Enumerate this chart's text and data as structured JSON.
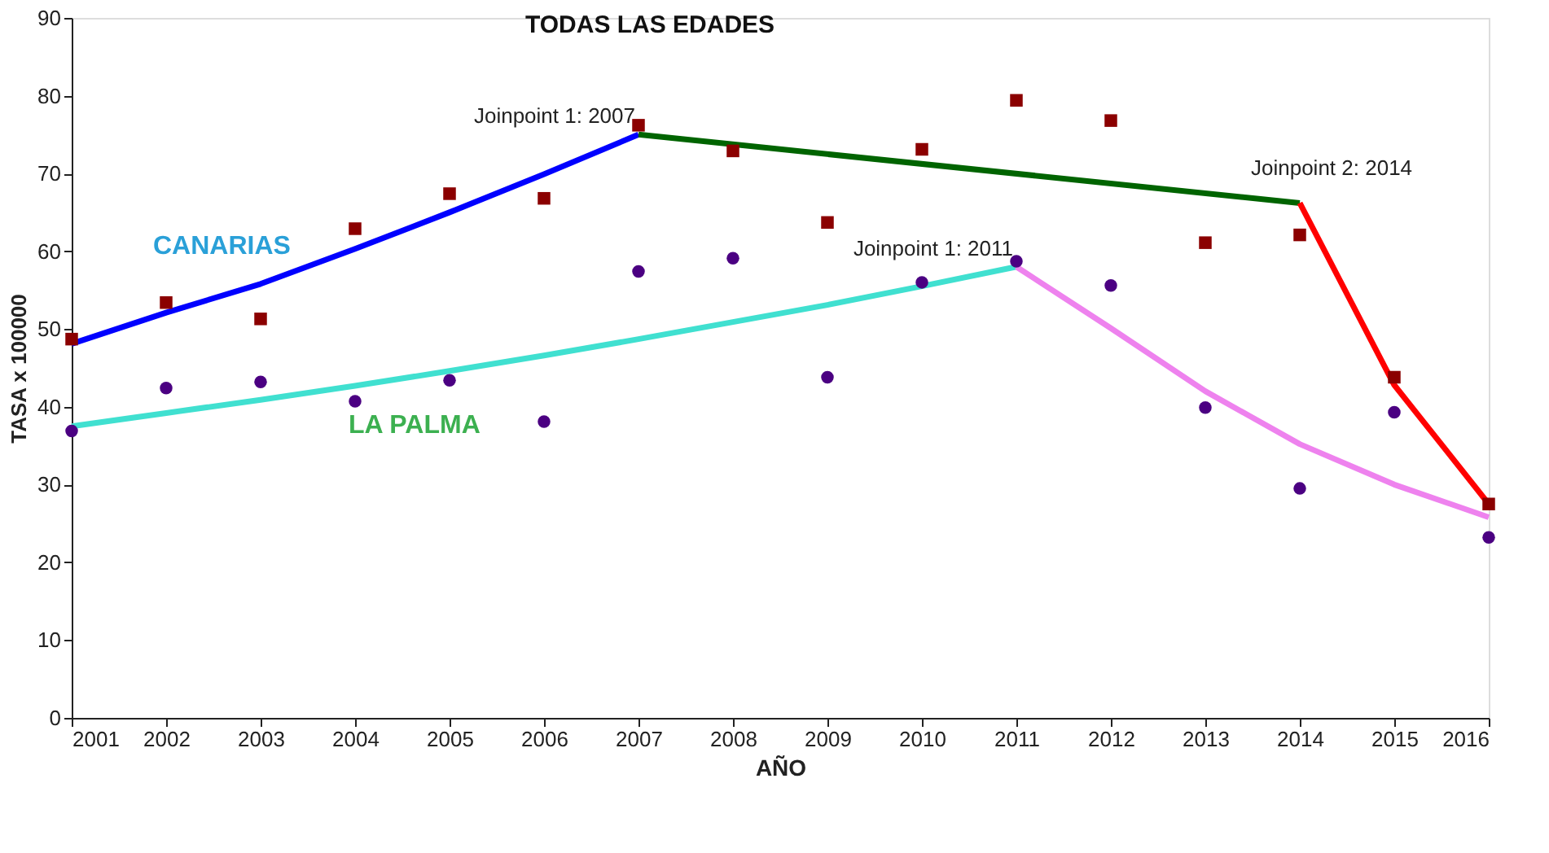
{
  "chart_data": {
    "type": "scatter",
    "title": "TODAS LAS EDADES",
    "xlabel": "AÑO",
    "ylabel": "TASA x 100000",
    "x": [
      2001,
      2002,
      2003,
      2004,
      2005,
      2006,
      2007,
      2008,
      2009,
      2010,
      2011,
      2012,
      2013,
      2014,
      2015,
      2016
    ],
    "series": [
      {
        "marker": "square",
        "color": "#8b0000",
        "values": [
          48.7,
          53.4,
          51.3,
          62.9,
          67.4,
          66.8,
          76.2,
          72.9,
          63.7,
          73.1,
          79.4,
          76.8,
          61.1,
          62.1,
          43.8,
          27.5
        ]
      },
      {
        "marker": "circle",
        "color": "#4b0082",
        "values": [
          36.9,
          42.4,
          43.2,
          40.7,
          43.4,
          38.1,
          57.4,
          59.1,
          43.8,
          56.0,
          58.7,
          55.6,
          39.9,
          29.5,
          39.3,
          23.2
        ]
      },
      {
        "type": "line",
        "color": "#0000ff",
        "x": [
          2001,
          2002,
          2003,
          2004,
          2005,
          2006,
          2007
        ],
        "values": [
          48.1,
          52.1,
          55.8,
          60.3,
          65.0,
          69.9,
          75.0
        ]
      },
      {
        "type": "line",
        "color": "#006400",
        "x": [
          2007,
          2014
        ],
        "values": [
          75.0,
          66.2
        ]
      },
      {
        "type": "line",
        "color": "#ff0000",
        "x": [
          2014,
          2015,
          2016
        ],
        "values": [
          66.2,
          42.8,
          27.5
        ]
      },
      {
        "type": "line",
        "color": "#40e0d0",
        "x": [
          2001,
          2002,
          2003,
          2004,
          2005,
          2006,
          2007,
          2008,
          2009,
          2010,
          2011
        ],
        "values": [
          37.5,
          39.2,
          40.9,
          42.7,
          44.6,
          46.6,
          48.7,
          50.9,
          53.1,
          55.5,
          58.0
        ]
      },
      {
        "type": "line",
        "color": "#ee82ee",
        "x": [
          2011,
          2012,
          2013,
          2014,
          2015,
          2016
        ],
        "values": [
          58.0,
          50.1,
          42.0,
          35.2,
          30.0,
          25.8
        ]
      }
    ],
    "annotations": [
      "CANARIAS",
      "LA PALMA",
      {
        "text": "Joinpoint 1:  2007",
        "x": 2007,
        "y": 75.0
      },
      {
        "text": "Joinpoint 1:  2011",
        "x": 2011,
        "y": 58.0
      },
      {
        "text": "Joinpoint 2:  2014",
        "x": 2014,
        "y": 66.2
      }
    ],
    "xlim": [
      2001,
      2016
    ],
    "xticks": [
      2001,
      2002,
      2003,
      2004,
      2005,
      2006,
      2007,
      2008,
      2009,
      2010,
      2011,
      2012,
      2013,
      2014,
      2015,
      2016
    ],
    "ylim": [
      0,
      90
    ],
    "yticks": [
      0,
      10,
      20,
      30,
      40,
      50,
      60,
      70,
      80,
      90
    ],
    "grid": false
  }
}
